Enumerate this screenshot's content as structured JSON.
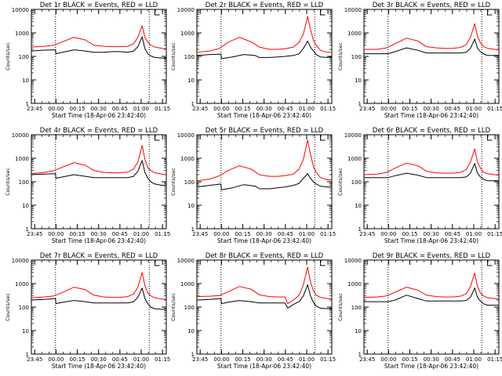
{
  "figure": {
    "x_axis_title": "Start Time (18-Apr-06 23:42:40)",
    "y_axis_title": "Counts/sec",
    "x_tick_labels": [
      "23:45",
      "00:00",
      "00:15",
      "00:30",
      "00:45",
      "01:00",
      "01:15"
    ],
    "y_tick_labels": [
      "1",
      "10",
      "100",
      "1000",
      "10000"
    ],
    "colors": {
      "events": "#000000",
      "lld": "#ff0000",
      "background": "#ffffff",
      "axes": "#000000"
    }
  },
  "chart_data": [
    {
      "type": "line",
      "title": "Det 1r BLACK = Events, RED = LLD",
      "xlabel": "Start Time (18-Apr-06 23:42:40)",
      "ylabel": "Counts/sec",
      "x_unit": "minutes after 23:42:40",
      "xlim": [
        0,
        95
      ],
      "ylim": [
        1,
        10000
      ],
      "yscale": "log",
      "grid": false,
      "vlines_dotted": [
        17,
        83
      ],
      "marker_flag_x": 87,
      "series": [
        {
          "name": "Events",
          "color": "#000000",
          "x": [
            0,
            9,
            17,
            17.3,
            22,
            30,
            38,
            44,
            51,
            57,
            62,
            68,
            72,
            75,
            78,
            80,
            82,
            84,
            87,
            92,
            95
          ],
          "y": [
            170,
            185,
            190,
            130,
            150,
            190,
            170,
            150,
            150,
            160,
            160,
            150,
            170,
            260,
            680,
            210,
            130,
            105,
            90,
            85,
            85
          ]
        },
        {
          "name": "LLD",
          "color": "#ff0000",
          "x": [
            0,
            9,
            16,
            22,
            30,
            38,
            44,
            51,
            57,
            62,
            68,
            72,
            75,
            78,
            80,
            82,
            84,
            87,
            92,
            95
          ],
          "y": [
            250,
            270,
            300,
            420,
            650,
            500,
            300,
            270,
            260,
            260,
            270,
            350,
            650,
            2000,
            650,
            400,
            300,
            250,
            220,
            210
          ]
        }
      ]
    },
    {
      "type": "line",
      "title": "Det 2r BLACK = Events, RED = LLD",
      "xlabel": "Start Time (18-Apr-06 23:42:40)",
      "ylabel": "Counts/sec",
      "x_unit": "minutes after 23:42:40",
      "xlim": [
        0,
        95
      ],
      "ylim": [
        1,
        10000
      ],
      "yscale": "log",
      "grid": false,
      "vlines_dotted": [
        17,
        83
      ],
      "marker_flag_x": 87,
      "series": [
        {
          "name": "Events",
          "color": "#000000",
          "x": [
            0,
            9,
            17,
            17.3,
            25,
            33,
            41,
            44,
            51,
            57,
            62,
            68,
            72,
            75,
            78,
            80,
            82,
            84,
            87,
            92,
            95
          ],
          "y": [
            110,
            120,
            125,
            80,
            95,
            120,
            110,
            90,
            90,
            95,
            100,
            110,
            130,
            220,
            450,
            250,
            170,
            120,
            95,
            90,
            95
          ]
        },
        {
          "name": "LLD",
          "color": "#ff0000",
          "x": [
            0,
            9,
            16,
            22,
            30,
            38,
            44,
            51,
            57,
            62,
            68,
            72,
            75,
            78,
            80,
            82,
            84,
            87,
            92,
            95
          ],
          "y": [
            150,
            170,
            220,
            400,
            650,
            420,
            250,
            200,
            200,
            210,
            250,
            400,
            900,
            5000,
            1400,
            500,
            300,
            180,
            150,
            150
          ]
        }
      ]
    },
    {
      "type": "line",
      "title": "Det 3r BLACK = Events, RED = LLD",
      "xlabel": "Start Time (18-Apr-06 23:42:40)",
      "ylabel": "Counts/sec",
      "x_unit": "minutes after 23:42:40",
      "xlim": [
        0,
        95
      ],
      "ylim": [
        1,
        10000
      ],
      "yscale": "log",
      "grid": false,
      "vlines_dotted": [
        17,
        83
      ],
      "marker_flag_x": 87,
      "series": [
        {
          "name": "Events",
          "color": "#000000",
          "x": [
            0,
            9,
            17,
            22,
            30,
            38,
            44,
            51,
            57,
            62,
            68,
            72,
            75,
            78,
            80,
            82,
            84,
            87,
            92,
            95
          ],
          "y": [
            130,
            130,
            130,
            160,
            230,
            180,
            140,
            140,
            140,
            140,
            140,
            150,
            220,
            550,
            220,
            160,
            130,
            110,
            110,
            110
          ]
        },
        {
          "name": "LLD",
          "color": "#ff0000",
          "x": [
            0,
            9,
            16,
            22,
            30,
            38,
            44,
            51,
            57,
            62,
            68,
            72,
            75,
            78,
            80,
            82,
            84,
            87,
            92,
            95
          ],
          "y": [
            200,
            200,
            230,
            350,
            600,
            450,
            260,
            230,
            220,
            220,
            240,
            320,
            650,
            2500,
            700,
            380,
            270,
            220,
            200,
            190
          ]
        }
      ]
    },
    {
      "type": "line",
      "title": "Det 4r BLACK = Events, RED = LLD",
      "xlabel": "Start Time (18-Apr-06 23:42:40)",
      "ylabel": "Counts/sec",
      "x_unit": "minutes after 23:42:40",
      "xlim": [
        0,
        95
      ],
      "ylim": [
        1,
        10000
      ],
      "yscale": "log",
      "grid": false,
      "vlines_dotted": [
        17,
        83
      ],
      "marker_flag_x": 87,
      "series": [
        {
          "name": "Events",
          "color": "#000000",
          "x": [
            0,
            9,
            17,
            17.3,
            22,
            30,
            38,
            44,
            51,
            57,
            62,
            68,
            72,
            75,
            78,
            80,
            82,
            84,
            87,
            92,
            95
          ],
          "y": [
            200,
            210,
            220,
            140,
            160,
            200,
            170,
            150,
            150,
            150,
            150,
            150,
            170,
            280,
            800,
            250,
            140,
            100,
            80,
            70,
            70
          ]
        },
        {
          "name": "LLD",
          "color": "#ff0000",
          "x": [
            0,
            9,
            16,
            22,
            30,
            38,
            44,
            51,
            57,
            62,
            68,
            72,
            75,
            78,
            80,
            82,
            84,
            87,
            92,
            95
          ],
          "y": [
            220,
            250,
            300,
            420,
            650,
            500,
            300,
            250,
            240,
            240,
            260,
            350,
            700,
            3500,
            900,
            400,
            300,
            240,
            210,
            200
          ]
        }
      ]
    },
    {
      "type": "line",
      "title": "Det 5r BLACK = Events, RED = LLD",
      "xlabel": "Start Time (18-Apr-06 23:42:40)",
      "ylabel": "Counts/sec",
      "x_unit": "minutes after 23:42:40",
      "xlim": [
        0,
        95
      ],
      "ylim": [
        1,
        10000
      ],
      "yscale": "log",
      "grid": false,
      "vlines_dotted": [
        17,
        83
      ],
      "marker_flag_x": 87,
      "series": [
        {
          "name": "Events",
          "color": "#000000",
          "x": [
            0,
            9,
            17,
            17.3,
            25,
            33,
            41,
            44,
            51,
            57,
            62,
            68,
            72,
            75,
            78,
            80,
            82,
            84,
            87,
            92,
            95
          ],
          "y": [
            60,
            70,
            80,
            45,
            55,
            75,
            65,
            50,
            50,
            55,
            60,
            70,
            85,
            140,
            220,
            140,
            100,
            80,
            65,
            60,
            60
          ]
        },
        {
          "name": "LLD",
          "color": "#ff0000",
          "x": [
            0,
            9,
            16,
            22,
            30,
            38,
            44,
            51,
            57,
            62,
            68,
            72,
            75,
            78,
            80,
            82,
            84,
            87,
            92,
            95
          ],
          "y": [
            110,
            130,
            180,
            300,
            480,
            350,
            200,
            170,
            170,
            180,
            210,
            350,
            900,
            6000,
            1500,
            450,
            250,
            150,
            120,
            120
          ]
        }
      ]
    },
    {
      "type": "line",
      "title": "Det 6r BLACK = Events, RED = LLD",
      "xlabel": "Start Time (18-Apr-06 23:42:40)",
      "ylabel": "Counts/sec",
      "x_unit": "minutes after 23:42:40",
      "xlim": [
        0,
        95
      ],
      "ylim": [
        1,
        10000
      ],
      "yscale": "log",
      "grid": false,
      "vlines_dotted": [
        17,
        83
      ],
      "marker_flag_x": 87,
      "series": [
        {
          "name": "Events",
          "color": "#000000",
          "x": [
            0,
            9,
            17,
            22,
            30,
            38,
            44,
            51,
            57,
            62,
            68,
            72,
            75,
            78,
            80,
            82,
            84,
            87,
            92,
            95
          ],
          "y": [
            150,
            150,
            150,
            180,
            230,
            190,
            150,
            150,
            150,
            150,
            150,
            160,
            230,
            600,
            230,
            160,
            130,
            110,
            110,
            110
          ]
        },
        {
          "name": "LLD",
          "color": "#ff0000",
          "x": [
            0,
            9,
            16,
            22,
            30,
            38,
            44,
            51,
            57,
            62,
            68,
            72,
            75,
            78,
            80,
            82,
            84,
            87,
            92,
            95
          ],
          "y": [
            200,
            210,
            250,
            380,
            620,
            480,
            280,
            240,
            230,
            230,
            250,
            330,
            700,
            2500,
            700,
            380,
            260,
            220,
            200,
            190
          ]
        }
      ]
    },
    {
      "type": "line",
      "title": "Det 7r BLACK = Events, RED = LLD",
      "xlabel": "Start Time (18-Apr-06 23:42:40)",
      "ylabel": "Counts/sec",
      "x_unit": "minutes after 23:42:40",
      "xlim": [
        0,
        95
      ],
      "ylim": [
        1,
        10000
      ],
      "yscale": "log",
      "grid": false,
      "vlines_dotted": [
        17,
        83
      ],
      "marker_flag_x": 87,
      "series": [
        {
          "name": "Events",
          "color": "#000000",
          "x": [
            0,
            9,
            17,
            17.3,
            22,
            30,
            38,
            44,
            51,
            57,
            62,
            68,
            72,
            75,
            78,
            80,
            82,
            84,
            87,
            92,
            95
          ],
          "y": [
            200,
            210,
            230,
            140,
            160,
            190,
            170,
            150,
            150,
            150,
            150,
            150,
            170,
            260,
            650,
            230,
            140,
            100,
            85,
            80,
            80
          ]
        },
        {
          "name": "LLD",
          "color": "#ff0000",
          "x": [
            0,
            9,
            16,
            22,
            30,
            38,
            44,
            51,
            57,
            62,
            68,
            72,
            75,
            78,
            80,
            82,
            84,
            87,
            92,
            95
          ],
          "y": [
            250,
            270,
            300,
            420,
            700,
            550,
            320,
            270,
            260,
            260,
            280,
            360,
            700,
            3000,
            800,
            400,
            300,
            250,
            220,
            210
          ]
        }
      ]
    },
    {
      "type": "line",
      "title": "Det 8r BLACK = Events, RED = LLD",
      "xlabel": "Start Time (18-Apr-06 23:42:40)",
      "ylabel": "Counts/sec",
      "x_unit": "minutes after 23:42:40",
      "xlim": [
        0,
        95
      ],
      "ylim": [
        1,
        10000
      ],
      "yscale": "log",
      "grid": false,
      "vlines_dotted": [
        17,
        83
      ],
      "marker_flag_x": 87,
      "series": [
        {
          "name": "Events",
          "color": "#000000",
          "x": [
            0,
            9,
            17,
            17.3,
            22,
            30,
            38,
            44,
            51,
            57,
            62,
            64,
            68,
            72,
            75,
            78,
            80,
            82,
            84,
            87,
            92,
            95
          ],
          "y": [
            200,
            210,
            230,
            140,
            160,
            190,
            170,
            150,
            150,
            150,
            150,
            90,
            130,
            170,
            300,
            900,
            300,
            160,
            110,
            90,
            85,
            85
          ]
        },
        {
          "name": "LLD",
          "color": "#ff0000",
          "x": [
            0,
            9,
            16,
            22,
            30,
            38,
            44,
            51,
            57,
            62,
            64,
            68,
            72,
            75,
            78,
            80,
            82,
            84,
            87,
            92,
            95
          ],
          "y": [
            280,
            290,
            310,
            450,
            750,
            580,
            330,
            280,
            270,
            270,
            140,
            200,
            320,
            900,
            5000,
            1200,
            500,
            320,
            260,
            230,
            220
          ]
        }
      ]
    },
    {
      "type": "line",
      "title": "Det 9r BLACK = Events, RED = LLD",
      "xlabel": "Start Time (18-Apr-06 23:42:40)",
      "ylabel": "Counts/sec",
      "x_unit": "minutes after 23:42:40",
      "xlim": [
        0,
        95
      ],
      "ylim": [
        1,
        10000
      ],
      "yscale": "log",
      "grid": false,
      "vlines_dotted": [
        17,
        83
      ],
      "marker_flag_x": 87,
      "series": [
        {
          "name": "Events",
          "color": "#000000",
          "x": [
            0,
            9,
            17,
            22,
            30,
            38,
            44,
            51,
            57,
            62,
            68,
            72,
            75,
            78,
            80,
            82,
            84,
            87,
            92,
            95
          ],
          "y": [
            170,
            170,
            170,
            200,
            320,
            230,
            180,
            180,
            180,
            180,
            180,
            190,
            260,
            650,
            260,
            180,
            140,
            120,
            120,
            120
          ]
        },
        {
          "name": "LLD",
          "color": "#ff0000",
          "x": [
            0,
            9,
            16,
            22,
            30,
            38,
            44,
            51,
            57,
            62,
            68,
            72,
            75,
            78,
            80,
            82,
            84,
            87,
            92,
            95
          ],
          "y": [
            260,
            270,
            300,
            430,
            700,
            520,
            320,
            280,
            270,
            270,
            290,
            370,
            750,
            2800,
            750,
            400,
            300,
            250,
            230,
            220
          ]
        }
      ]
    }
  ]
}
